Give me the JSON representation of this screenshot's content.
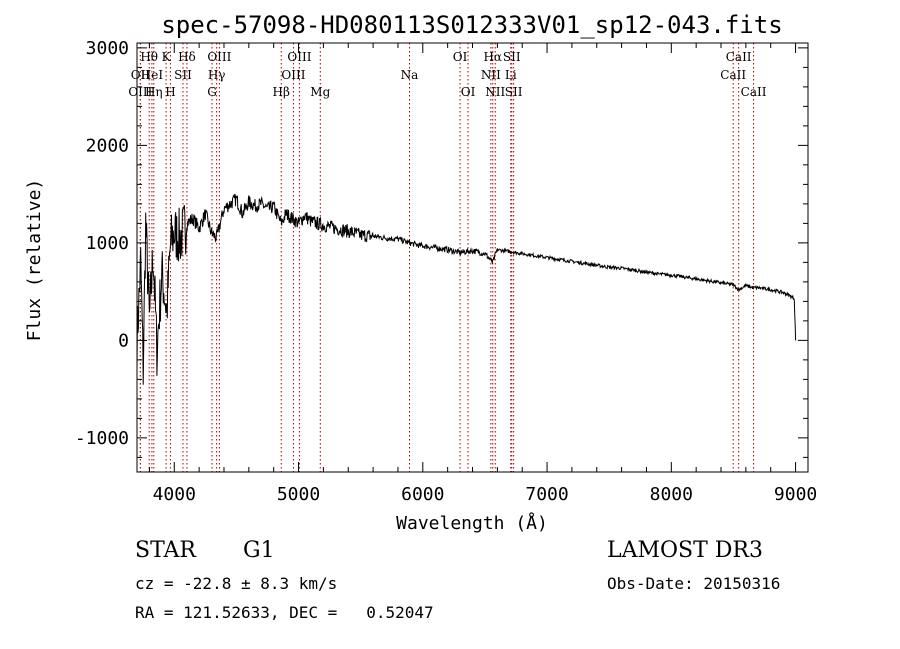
{
  "chart_data": {
    "type": "line",
    "title": "spec-57098-HD080113S012333V01_sp12-043.fits",
    "xlabel": "Wavelength (Å)",
    "ylabel": "Flux (relative)",
    "xlim": [
      3700,
      9100
    ],
    "ylim": [
      -1350,
      3050
    ],
    "xticks": [
      "4000",
      "5000",
      "6000",
      "7000",
      "8000",
      "9000"
    ],
    "yticks": [
      "-1000",
      "0",
      "1000",
      "2000",
      "3000"
    ],
    "line_color": "#b00000",
    "series": [
      {
        "name": "flux",
        "x": [
          3700,
          3730,
          3750,
          3770,
          3800,
          3830,
          3860,
          3900,
          3940,
          3970,
          4000,
          4050,
          4100,
          4150,
          4200,
          4250,
          4300,
          4340,
          4400,
          4450,
          4500,
          4550,
          4600,
          4650,
          4700,
          4750,
          4800,
          4861,
          4900,
          4950,
          5000,
          5050,
          5100,
          5150,
          5200,
          5300,
          5400,
          5500,
          5600,
          5700,
          5800,
          5893,
          5950,
          6000,
          6100,
          6200,
          6300,
          6400,
          6500,
          6563,
          6600,
          6700,
          6800,
          6900,
          7000,
          7100,
          7200,
          7300,
          7400,
          7500,
          7600,
          7700,
          7800,
          7900,
          8000,
          8100,
          8200,
          8300,
          8400,
          8500,
          8542,
          8600,
          8662,
          8700,
          8800,
          8900,
          8950,
          8990,
          9000
        ],
        "values": [
          0,
          800,
          -300,
          1200,
          200,
          900,
          -100,
          700,
          300,
          1000,
          1100,
          1050,
          1200,
          1250,
          1150,
          1300,
          1100,
          1050,
          1350,
          1400,
          1450,
          1300,
          1420,
          1380,
          1400,
          1350,
          1370,
          1200,
          1300,
          1250,
          1200,
          1280,
          1220,
          1200,
          1180,
          1150,
          1120,
          1080,
          1070,
          1050,
          1040,
          1000,
          980,
          970,
          950,
          930,
          900,
          920,
          890,
          800,
          930,
          910,
          890,
          870,
          850,
          830,
          810,
          790,
          770,
          750,
          740,
          720,
          700,
          680,
          670,
          650,
          630,
          610,
          590,
          570,
          520,
          560,
          540,
          540,
          520,
          490,
          460,
          430,
          0
        ]
      }
    ],
    "lines": [
      {
        "label": "Hθ",
        "x": 3798,
        "row": 0
      },
      {
        "label": "OII",
        "x": 3727,
        "row": 1
      },
      {
        "label": "OIII",
        "x": 3727,
        "row": 2
      },
      {
        "label": "Hη",
        "x": 3835,
        "row": 2
      },
      {
        "label": "HeI",
        "x": 3820,
        "row": 1
      },
      {
        "label": "K",
        "x": 3934,
        "row": 0
      },
      {
        "label": "H",
        "x": 3969,
        "row": 2
      },
      {
        "label": "SII",
        "x": 4070,
        "row": 1
      },
      {
        "label": "Hδ",
        "x": 4102,
        "row": 0
      },
      {
        "label": "OIII",
        "x": 4363,
        "row": 0
      },
      {
        "label": "Hγ",
        "x": 4341,
        "row": 1
      },
      {
        "label": "G",
        "x": 4304,
        "row": 2
      },
      {
        "label": "Hβ",
        "x": 4861,
        "row": 2
      },
      {
        "label": "OIII",
        "x": 4959,
        "row": 1
      },
      {
        "label": "OIII",
        "x": 5007,
        "row": 0
      },
      {
        "label": "Mg",
        "x": 5175,
        "row": 2
      },
      {
        "label": "Na",
        "x": 5893,
        "row": 1
      },
      {
        "label": "OI",
        "x": 6300,
        "row": 0
      },
      {
        "label": "OI",
        "x": 6364,
        "row": 2
      },
      {
        "label": "NII",
        "x": 6548,
        "row": 1
      },
      {
        "label": "Hα",
        "x": 6563,
        "row": 0
      },
      {
        "label": "NII",
        "x": 6583,
        "row": 2
      },
      {
        "label": "Li",
        "x": 6708,
        "row": 1
      },
      {
        "label": "SII",
        "x": 6716,
        "row": 0
      },
      {
        "label": "SII",
        "x": 6731,
        "row": 2
      },
      {
        "label": "CaII",
        "x": 8498,
        "row": 1
      },
      {
        "label": "CaII",
        "x": 8542,
        "row": 0
      },
      {
        "label": "CaII",
        "x": 8662,
        "row": 2
      }
    ]
  },
  "info": {
    "object_class": "STAR",
    "subclass": "G1",
    "survey": "LAMOST DR3",
    "redshift": "cz = -22.8 ± 8.3 km/s",
    "obs_date": "Obs-Date: 20150316",
    "coords": "RA = 121.52633, DEC =   0.52047"
  }
}
